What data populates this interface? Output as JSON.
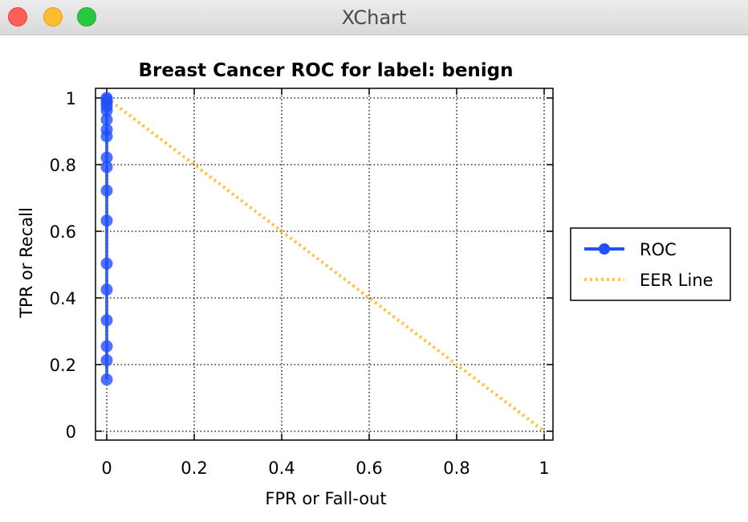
{
  "window": {
    "title": "XChart"
  },
  "colors": {
    "roc": "#2050ff",
    "eer": "#ffc44a",
    "grid": "#000000",
    "background": "#ffffff"
  },
  "chart_data": {
    "type": "line",
    "title": "Breast Cancer ROC for label: benign",
    "xlabel": "FPR or Fall-out",
    "ylabel": "TPR or Recall",
    "xlim": [
      0,
      1
    ],
    "ylim": [
      0,
      1
    ],
    "xticks": [
      "0",
      "0.2",
      "0.4",
      "0.6",
      "0.8",
      "1"
    ],
    "yticks": [
      "0",
      "0.2",
      "0.4",
      "0.6",
      "0.8",
      "1"
    ],
    "grid": true,
    "legend": {
      "position": "right",
      "entries": [
        "ROC",
        "EER Line"
      ]
    },
    "series": [
      {
        "name": "ROC",
        "style": "line-with-markers",
        "points": [
          [
            0,
            0.155
          ],
          [
            0,
            0.213
          ],
          [
            0,
            0.255
          ],
          [
            0,
            0.333
          ],
          [
            0,
            0.425
          ],
          [
            0,
            0.503
          ],
          [
            0,
            0.632
          ],
          [
            0,
            0.722
          ],
          [
            0,
            0.793
          ],
          [
            0,
            0.821
          ],
          [
            0,
            0.885
          ],
          [
            0,
            0.905
          ],
          [
            0,
            0.935
          ],
          [
            0,
            0.962
          ],
          [
            0,
            0.975
          ],
          [
            0,
            0.985
          ],
          [
            0,
            0.995
          ],
          [
            0,
            1.0
          ]
        ]
      },
      {
        "name": "EER Line",
        "style": "dotted",
        "points": [
          [
            0,
            1
          ],
          [
            1,
            0
          ]
        ]
      }
    ]
  }
}
